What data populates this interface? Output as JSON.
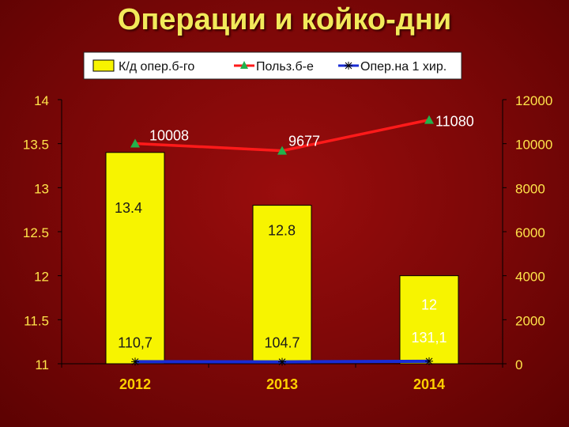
{
  "title": "Операции и койко-дни",
  "colors": {
    "bar_fill": "#f7f400",
    "line_red": "#ff1a1a",
    "marker_green": "#22b14c",
    "line_blue": "#1a2cd6",
    "axis_text": "#ffe44a",
    "x_tick_text": "#ffd000",
    "data_label_text": "#1a1a1a",
    "data_label_light": "#ffffff"
  },
  "chart_data": {
    "type": "bar",
    "title": "Операции и койко-дни",
    "categories": [
      "2012",
      "2013",
      "2014"
    ],
    "legend": {
      "placement": "top",
      "entries": [
        "К/д опер.б-го",
        "Польз.б-е",
        "Опер.на 1 хир."
      ]
    },
    "left_axis": {
      "range": [
        11,
        14
      ],
      "ticks": [
        "11",
        "11.5",
        "12",
        "12.5",
        "13",
        "13.5",
        "14"
      ]
    },
    "right_axis": {
      "range": [
        0,
        12000
      ],
      "ticks": [
        "0",
        "2000",
        "4000",
        "6000",
        "8000",
        "10000",
        "12000"
      ]
    },
    "series": [
      {
        "name": "К/д опер.б-го",
        "type": "bar",
        "axis": "left",
        "values": [
          13.4,
          12.8,
          12
        ],
        "labels": [
          "13.4",
          "12.8",
          "12"
        ]
      },
      {
        "name": "Польз.б-е",
        "type": "line",
        "axis": "right",
        "values": [
          10008,
          9677,
          11080
        ],
        "labels": [
          "10008",
          "9677",
          "11080"
        ]
      },
      {
        "name": "Опер.на 1 хир.",
        "type": "line",
        "axis": "right",
        "values": [
          110.7,
          104.7,
          131.1
        ],
        "labels": [
          "110,7",
          "104.7",
          "131,1"
        ]
      }
    ],
    "grid": false
  }
}
